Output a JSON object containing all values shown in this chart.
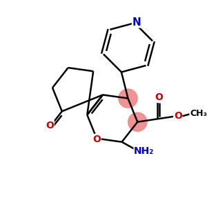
{
  "bg_color": "#ffffff",
  "atom_colors": {
    "C": "#000000",
    "N": "#0000cc",
    "O": "#cc0000"
  },
  "highlight_color": "#f08080",
  "bond_color": "#000000",
  "bond_lw": 1.8,
  "figsize": [
    3.0,
    3.0
  ],
  "dpi": 100,
  "side": 38
}
